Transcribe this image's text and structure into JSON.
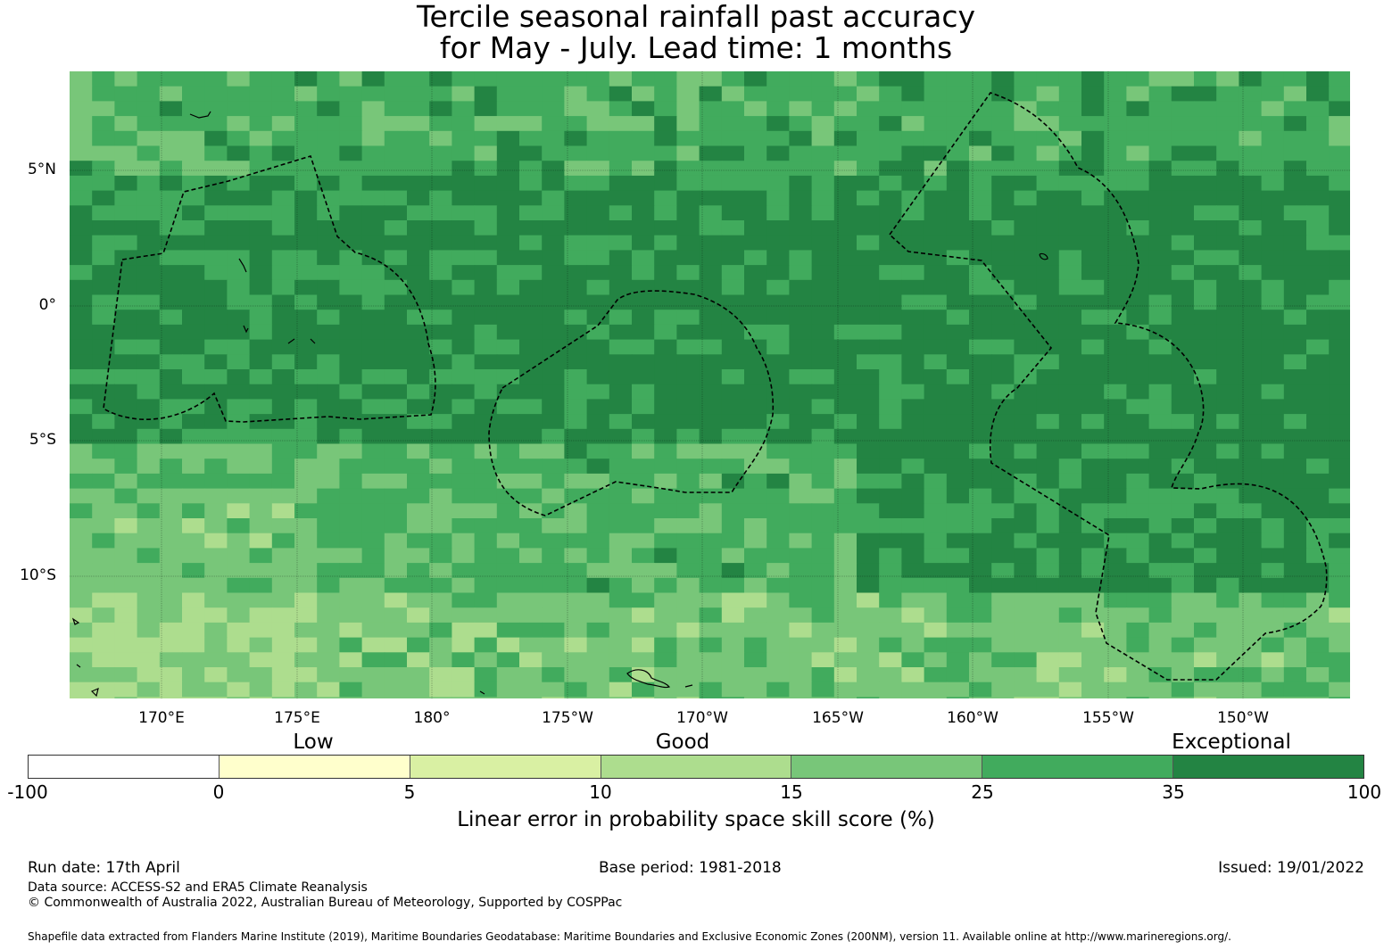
{
  "title_line1": "Tercile seasonal rainfall past accuracy",
  "title_line2": "for May - July. Lead time: 1 months",
  "map": {
    "lon_labels": [
      "170°E",
      "175°E",
      "180°",
      "175°W",
      "170°W",
      "165°W",
      "160°W",
      "155°W",
      "150°W"
    ],
    "lat_labels": [
      "5°N",
      "0°",
      "5°S",
      "10°S"
    ],
    "gridlines": true,
    "eez_boundaries": "dashed black"
  },
  "colorbar": {
    "category_words": [
      "Low",
      "Good",
      "Exceptional"
    ],
    "tick_labels": [
      "-100",
      "0",
      "5",
      "10",
      "15",
      "25",
      "35",
      "100"
    ],
    "colors": [
      "#ffffff",
      "#ffffcc",
      "#d9f0a3",
      "#addd8e",
      "#78c679",
      "#41ab5d",
      "#238443"
    ],
    "label": "Linear error in probability space skill score (%)"
  },
  "footer": {
    "run_date": "Run date: 17th April",
    "base_period": "Base period: 1981-2018",
    "issued": "Issued: 19/01/2022",
    "data_source": "Data source: ACCESS-S2 and ERA5 Climate Reanalysis",
    "copyright": "© Commonwealth of Australia 2022, Australian Bureau of Meteorology, Supported by COSPPac",
    "shapefile_note": "Shapefile data extracted from Flanders Marine Institute (2019), Maritime Boundaries Geodatabase: Maritime Boundaries and Exclusive Economic Zones (200NM), version 11. Available online at http://www.marineregions.org/."
  }
}
